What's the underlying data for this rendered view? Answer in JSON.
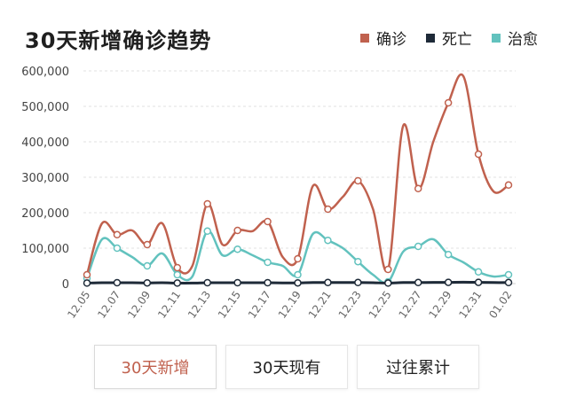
{
  "header": {
    "title": "30天新增确诊趋势"
  },
  "legend": [
    {
      "label": "确诊",
      "color": "#c0614e"
    },
    {
      "label": "死亡",
      "color": "#1e2a38"
    },
    {
      "label": "治愈",
      "color": "#62c2be"
    }
  ],
  "tabs": [
    {
      "label": "30天新增",
      "active": true
    },
    {
      "label": "30天现有",
      "active": false
    },
    {
      "label": "过往累计",
      "active": false
    }
  ],
  "chart_data": {
    "type": "line",
    "title": "30天新增确诊趋势",
    "x": [
      "12.05",
      "12.06",
      "12.07",
      "12.08",
      "12.09",
      "12.10",
      "12.11",
      "12.12",
      "12.13",
      "12.14",
      "12.15",
      "12.16",
      "12.17",
      "12.18",
      "12.19",
      "12.20",
      "12.21",
      "12.22",
      "12.23",
      "12.24",
      "12.25",
      "12.26",
      "12.27",
      "12.28",
      "12.29",
      "12.30",
      "12.31",
      "01.01",
      "01.02"
    ],
    "x_tick_labels": [
      "12.05",
      "12.07",
      "12.09",
      "12.11",
      "12.13",
      "12.15",
      "12.17",
      "12.19",
      "12.21",
      "12.23",
      "12.25",
      "12.27",
      "12.29",
      "12.31",
      "01.02"
    ],
    "y_ticks": [
      "0",
      "100,000",
      "200,000",
      "300,000",
      "400,000",
      "500,000",
      "600,000"
    ],
    "ylim": [
      0,
      600000
    ],
    "grid": "horizontal-dashed",
    "legend_position": "top-right",
    "series": [
      {
        "name": "确诊",
        "color": "#c0614e",
        "values": [
          25000,
          170000,
          138000,
          150000,
          110000,
          170000,
          45000,
          50000,
          225000,
          110000,
          150000,
          148000,
          175000,
          75000,
          70000,
          275000,
          210000,
          245000,
          290000,
          210000,
          40000,
          445000,
          268000,
          400000,
          510000,
          585000,
          365000,
          260000,
          278000
        ]
      },
      {
        "name": "死亡",
        "color": "#1e2a38",
        "values": [
          1500,
          2500,
          2500,
          2500,
          2000,
          2500,
          1500,
          1500,
          2500,
          2500,
          2500,
          2500,
          2500,
          2000,
          2000,
          3000,
          3000,
          3000,
          3000,
          2500,
          1500,
          3000,
          3000,
          3500,
          3500,
          4000,
          3500,
          3000,
          3000
        ]
      },
      {
        "name": "治愈",
        "color": "#62c2be",
        "values": [
          15000,
          125000,
          100000,
          75000,
          50000,
          85000,
          25000,
          20000,
          148000,
          80000,
          97000,
          80000,
          60000,
          50000,
          25000,
          140000,
          122000,
          100000,
          62000,
          25000,
          5000,
          90000,
          105000,
          125000,
          82000,
          60000,
          33000,
          20000,
          25000
        ]
      }
    ]
  }
}
